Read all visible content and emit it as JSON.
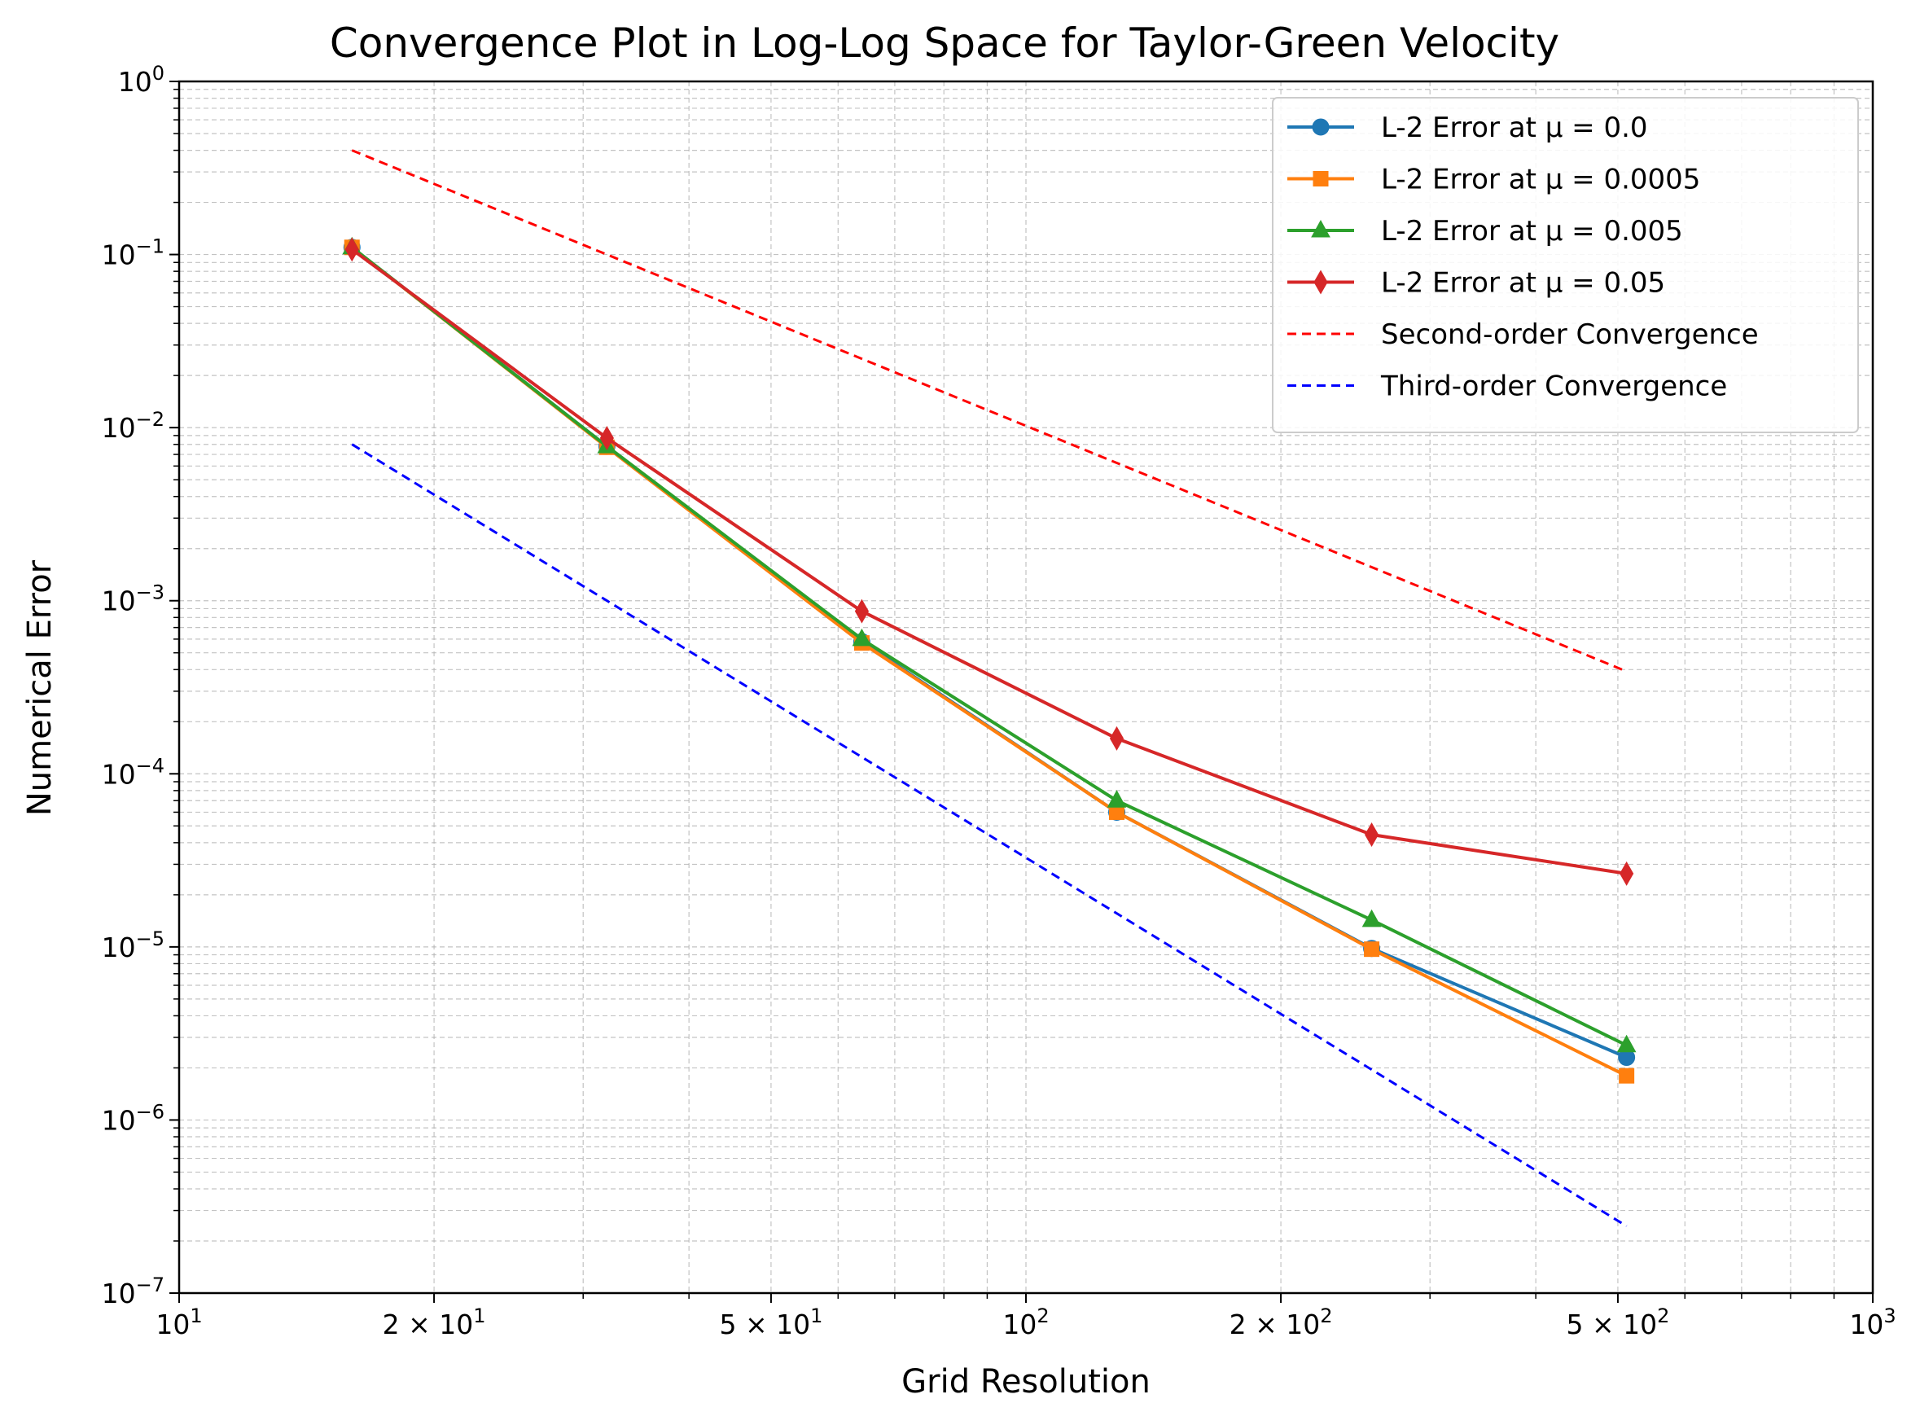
{
  "chart_data": {
    "type": "line",
    "title": "Convergence Plot in Log-Log Space for Taylor-Green Velocity",
    "xlabel": "Grid Resolution",
    "ylabel": "Numerical Error",
    "xscale": "log",
    "yscale": "log",
    "xlim": [
      10,
      1000
    ],
    "ylim": [
      1e-07,
      1
    ],
    "grid": true,
    "legend": "top-right",
    "x_ticks": [
      {
        "value": 10,
        "base": "10",
        "exp": "1"
      },
      {
        "value": 20,
        "base": "2 × 10",
        "exp": "1"
      },
      {
        "value": 50,
        "base": "5 × 10",
        "exp": "1"
      },
      {
        "value": 100,
        "base": "10",
        "exp": "2"
      },
      {
        "value": 200,
        "base": "2 × 10",
        "exp": "2"
      },
      {
        "value": 500,
        "base": "5 × 10",
        "exp": "2"
      },
      {
        "value": 1000,
        "base": "10",
        "exp": "3"
      }
    ],
    "y_ticks": [
      {
        "value": 1,
        "base": "10",
        "exp": "0"
      },
      {
        "value": 0.1,
        "base": "10",
        "exp": "−1"
      },
      {
        "value": 0.01,
        "base": "10",
        "exp": "−2"
      },
      {
        "value": 0.001,
        "base": "10",
        "exp": "−3"
      },
      {
        "value": 0.0001,
        "base": "10",
        "exp": "−4"
      },
      {
        "value": 1e-05,
        "base": "10",
        "exp": "−5"
      },
      {
        "value": 1e-06,
        "base": "10",
        "exp": "−6"
      },
      {
        "value": 1e-07,
        "base": "10",
        "exp": "−7"
      }
    ],
    "x": [
      16,
      32,
      64,
      128,
      256,
      512
    ],
    "series": [
      {
        "name": "L-2 Error at μ = 0.0",
        "color": "#1f77b4",
        "marker": "circle",
        "dash": "solid",
        "values": [
          0.11,
          0.0078,
          0.00058,
          6e-05,
          9.8e-06,
          2.3e-06
        ]
      },
      {
        "name": "L-2 Error at μ = 0.0005",
        "color": "#ff7f0e",
        "marker": "square",
        "dash": "solid",
        "values": [
          0.11,
          0.0077,
          0.00057,
          6e-05,
          9.7e-06,
          1.8e-06
        ]
      },
      {
        "name": "L-2 Error at μ = 0.005",
        "color": "#2ca02c",
        "marker": "triangle",
        "dash": "solid",
        "values": [
          0.11,
          0.0078,
          0.0006,
          7e-05,
          1.43e-05,
          2.7e-06
        ]
      },
      {
        "name": "L-2 Error at μ = 0.05",
        "color": "#d62728",
        "marker": "diamond",
        "dash": "solid",
        "values": [
          0.107,
          0.0087,
          0.00087,
          0.00016,
          4.45e-05,
          2.65e-05
        ]
      },
      {
        "name": "Second-order Convergence",
        "color": "#ff0000",
        "marker": "none",
        "dash": "dashed",
        "values": [
          0.4,
          0.1,
          0.025,
          0.00625,
          0.0015625,
          0.000390625
        ]
      },
      {
        "name": "Third-order Convergence",
        "color": "#0000ff",
        "marker": "none",
        "dash": "dashed",
        "values": [
          0.008,
          0.001,
          0.000125,
          1.5625e-05,
          1.953e-06,
          2.44e-07
        ]
      }
    ]
  }
}
